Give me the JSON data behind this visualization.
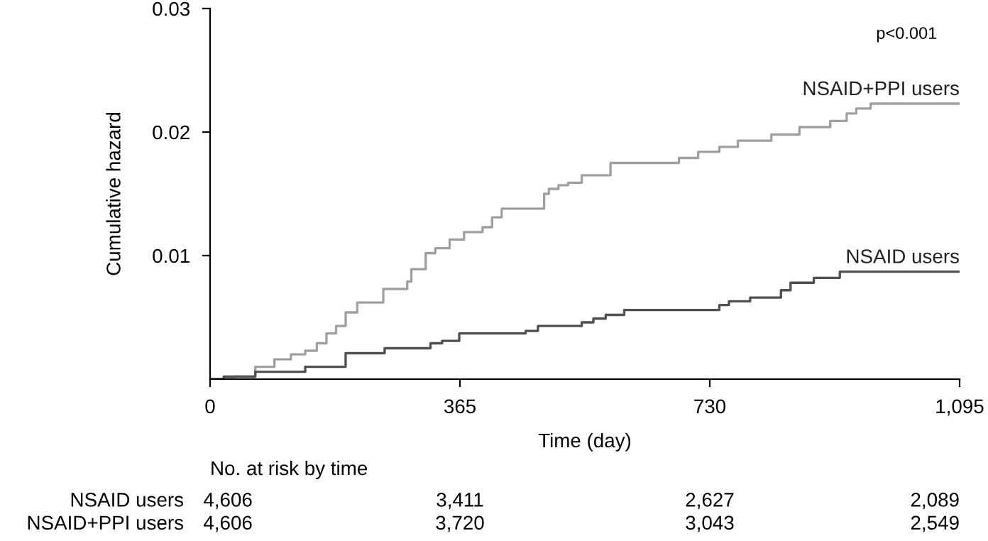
{
  "chart_data": {
    "type": "step",
    "xlabel": "Time (day)",
    "ylabel": "Cumulative hazard",
    "xlim": [
      0,
      1095
    ],
    "xticks": [
      0,
      365,
      730,
      {
        "value": 1095,
        "label": "1,095"
      }
    ],
    "ylim": [
      0,
      0.03
    ],
    "yticks": [
      0.01,
      0.02,
      0.03
    ],
    "grid": false,
    "legend": false,
    "series": [
      {
        "name": "NSAID+PPI users",
        "color": "#a0a0a0",
        "x": [
          0,
          35,
          66,
          94,
          118,
          139,
          156,
          170,
          184,
          198,
          215,
          253,
          288,
          294,
          315,
          329,
          350,
          371,
          398,
          412,
          426,
          488,
          495,
          509,
          523,
          543,
          585,
          685,
          713,
          744,
          771,
          820,
          861,
          906,
          930,
          944,
          965,
          1095
        ],
        "values": [
          0,
          0.0002,
          0.001,
          0.0016,
          0.002,
          0.0023,
          0.0029,
          0.0037,
          0.0043,
          0.0054,
          0.0062,
          0.0073,
          0.0079,
          0.0089,
          0.0102,
          0.0106,
          0.0113,
          0.0119,
          0.0123,
          0.0131,
          0.0138,
          0.015,
          0.0154,
          0.0157,
          0.0159,
          0.0165,
          0.0175,
          0.0179,
          0.0184,
          0.0188,
          0.0193,
          0.0198,
          0.0204,
          0.0209,
          0.0215,
          0.0219,
          0.0223,
          0.0223
        ]
      },
      {
        "name": "NSAID users",
        "color": "#505050",
        "x": [
          0,
          20,
          66,
          139,
          198,
          255,
          322,
          339,
          364,
          461,
          479,
          543,
          560,
          578,
          605,
          744,
          758,
          789,
          834,
          848,
          882,
          920,
          1095
        ],
        "values": [
          0,
          0.0002,
          0.0006,
          0.001,
          0.0021,
          0.0025,
          0.0029,
          0.0031,
          0.0037,
          0.0039,
          0.0043,
          0.0046,
          0.0049,
          0.0052,
          0.0056,
          0.006,
          0.0063,
          0.0066,
          0.0072,
          0.0078,
          0.0082,
          0.0087,
          0.0087
        ]
      }
    ],
    "annotations": [
      "p<0.001",
      "No. at risk by time",
      "NSAID users",
      "4,606",
      "3,411",
      "2,627",
      "2,089",
      "NSAID+PPI users",
      "4,606",
      "3,720",
      "3,043",
      "2,549"
    ]
  }
}
